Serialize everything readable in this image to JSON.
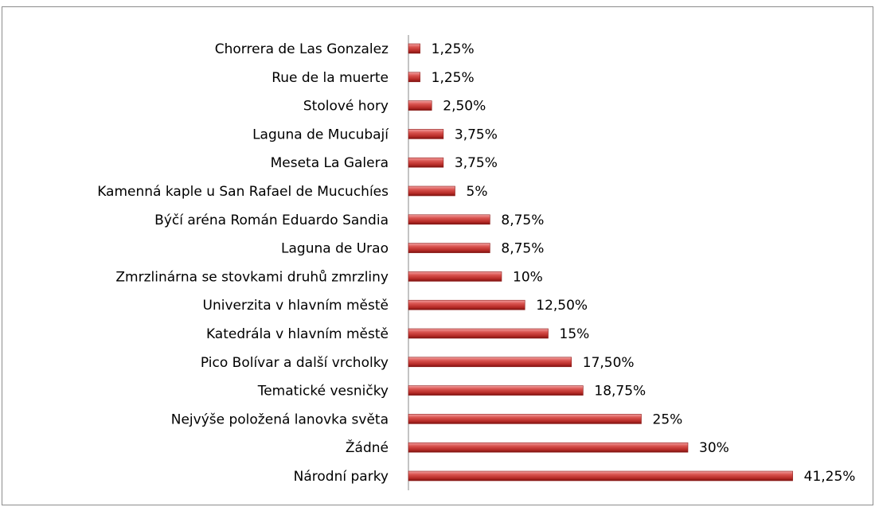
{
  "chart_data": {
    "type": "bar",
    "orientation": "horizontal",
    "color": "#c0392b",
    "categories": [
      "Chorrera de Las Gonzalez",
      "Rue de la muerte",
      "Stolové hory",
      "Laguna de Mucubají",
      "Meseta La Galera",
      "Kamenná kaple u San Rafael de Mucuchíes",
      "Býčí aréna Román Eduardo Sandia",
      "Laguna de Urao",
      "Zmrzlinárna se stovkami druhů zmrzliny",
      "Univerzita v hlavním městě",
      "Katedrála v hlavním městě",
      "Pico Bolívar a další vrcholky",
      "Tematické vesničky",
      "Nejvýše položená lanovka světa",
      "Žádné",
      "Národní parky"
    ],
    "values": [
      1.25,
      1.25,
      2.5,
      3.75,
      3.75,
      5,
      8.75,
      8.75,
      10,
      12.5,
      15,
      17.5,
      18.75,
      25,
      30,
      41.25
    ],
    "value_labels": [
      "1,25%",
      "1,25%",
      "2,50%",
      "3,75%",
      "3,75%",
      "5%",
      "8,75%",
      "8,75%",
      "10%",
      "12,50%",
      "15%",
      "17,50%",
      "18,75%",
      "25%",
      "30%",
      "41,25%"
    ]
  }
}
